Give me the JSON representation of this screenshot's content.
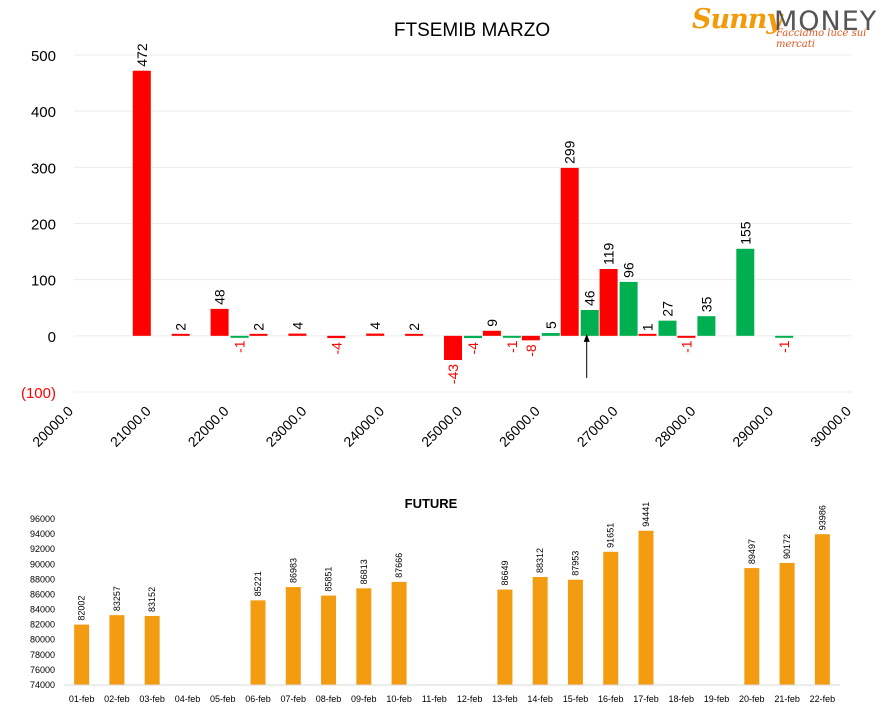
{
  "logo": {
    "brand_left": "Sunny",
    "brand_right": "MONEY",
    "tagline": "Facciamo luce sui mercati",
    "colors": {
      "sun": "#f39a0b",
      "money": "#555555",
      "tagline": "#e2561c"
    }
  },
  "chart_data": [
    {
      "type": "bar",
      "title": "FTSEMIB MARZO",
      "xlabel": "",
      "ylabel": "",
      "ylim": [
        -100,
        500
      ],
      "y_ticks": [
        {
          "value": 500,
          "label": "500"
        },
        {
          "value": 400,
          "label": "400"
        },
        {
          "value": 300,
          "label": "300"
        },
        {
          "value": 200,
          "label": "200"
        },
        {
          "value": 100,
          "label": "100"
        },
        {
          "value": 0,
          "label": "0"
        },
        {
          "value": -100,
          "label": "(100)"
        }
      ],
      "xlim": [
        20000,
        30000
      ],
      "x_ticks": [
        20000,
        21000,
        22000,
        23000,
        24000,
        25000,
        26000,
        27000,
        28000,
        29000,
        30000
      ],
      "x_tick_labels": [
        "20000.0",
        "21000.0",
        "22000.0",
        "23000.0",
        "24000.0",
        "25000.0",
        "26000.0",
        "27000.0",
        "28000.0",
        "29000.0",
        "30000.0"
      ],
      "grid": true,
      "legend": "none",
      "colors": {
        "call": "#ff0000",
        "put": "#00b050",
        "negative_label": "#ff0000",
        "label": "#000000"
      },
      "series": [
        {
          "color": "#ff0000",
          "points": [
            {
              "x": 21000,
              "y": 472,
              "label": "472"
            },
            {
              "x": 21500,
              "y": 2,
              "label": "2"
            },
            {
              "x": 22000,
              "y": 48,
              "label": "48"
            },
            {
              "x": 22500,
              "y": 2,
              "label": "2"
            },
            {
              "x": 23000,
              "y": 4,
              "label": "4"
            },
            {
              "x": 23500,
              "y": -4,
              "label": "-4"
            },
            {
              "x": 24000,
              "y": 4,
              "label": "4"
            },
            {
              "x": 24500,
              "y": 2,
              "label": "2"
            },
            {
              "x": 25000,
              "y": -43,
              "label": "-43"
            },
            {
              "x": 25500,
              "y": 9,
              "label": "9"
            },
            {
              "x": 26000,
              "y": -8,
              "label": "-8"
            },
            {
              "x": 26500,
              "y": 299,
              "label": "299"
            },
            {
              "x": 27000,
              "y": 119,
              "label": "119"
            },
            {
              "x": 27500,
              "y": 1,
              "label": "1"
            },
            {
              "x": 28000,
              "y": -1,
              "label": "-1"
            }
          ]
        },
        {
          "color": "#00b050",
          "points": [
            {
              "x": 22000,
              "y": -1,
              "label": "-1"
            },
            {
              "x": 25000,
              "y": -4,
              "label": "-4"
            },
            {
              "x": 25500,
              "y": -1,
              "label": "-1"
            },
            {
              "x": 26000,
              "y": 5,
              "label": "5"
            },
            {
              "x": 26500,
              "y": 46,
              "label": "46"
            },
            {
              "x": 27000,
              "y": 96,
              "label": "96"
            },
            {
              "x": 27500,
              "y": 27,
              "label": "27"
            },
            {
              "x": 28000,
              "y": 35,
              "label": "35"
            },
            {
              "x": 28500,
              "y": 155,
              "label": "155"
            },
            {
              "x": 29000,
              "y": -1,
              "label": "-1"
            }
          ]
        }
      ],
      "annotations": [
        {
          "type": "arrow",
          "x": 26500,
          "y_from": -75,
          "y_to": 0
        }
      ]
    },
    {
      "type": "bar",
      "title": "FUTURE",
      "xlabel": "",
      "ylabel": "",
      "ylim": [
        74000,
        96000
      ],
      "y_ticks": [
        74000,
        76000,
        78000,
        80000,
        82000,
        84000,
        86000,
        88000,
        90000,
        92000,
        94000,
        96000
      ],
      "y_tick_labels": [
        "74000",
        "76000",
        "78000",
        "80000",
        "82000",
        "84000",
        "86000",
        "88000",
        "90000",
        "92000",
        "94000",
        "96000"
      ],
      "grid": false,
      "legend": "none",
      "colors": {
        "bar": "#f39c12"
      },
      "categories": [
        "01-feb",
        "02-feb",
        "03-feb",
        "04-feb",
        "05-feb",
        "06-feb",
        "07-feb",
        "08-feb",
        "09-feb",
        "10-feb",
        "11-feb",
        "12-feb",
        "13-feb",
        "14-feb",
        "15-feb",
        "16-feb",
        "17-feb",
        "18-feb",
        "19-feb",
        "20-feb",
        "21-feb",
        "22-feb"
      ],
      "values": [
        82002,
        83257,
        83152,
        null,
        null,
        85221,
        86983,
        85851,
        86813,
        87666,
        null,
        null,
        86649,
        88312,
        87953,
        91651,
        94441,
        null,
        null,
        89497,
        90172,
        93986
      ]
    }
  ]
}
